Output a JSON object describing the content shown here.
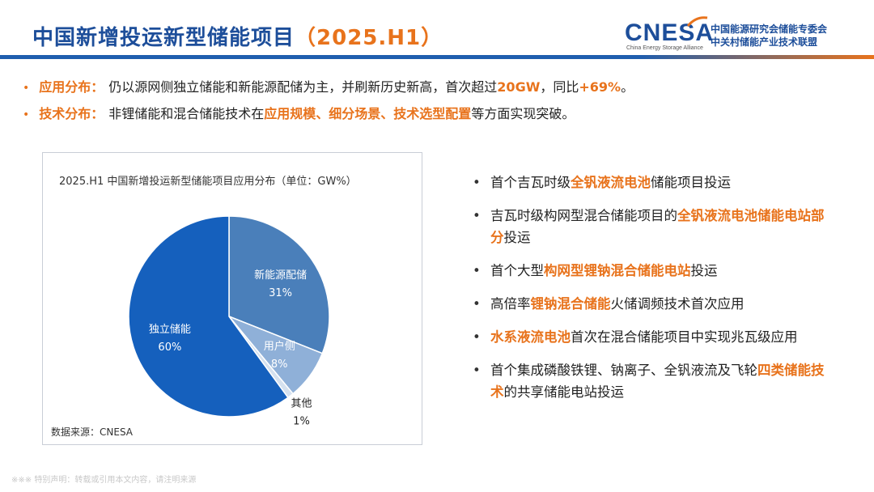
{
  "header": {
    "title_main": "中国新增投运新型储能项目",
    "title_accent": "（2025.H1）",
    "logo_word": "CNESA",
    "logo_sub": "China Energy Storage Alliance",
    "logo_cn_line1": "中国能源研究会储能专委会",
    "logo_cn_line2": "中关村储能产业技术联盟",
    "brand_color": "#1d4e9a",
    "accent_color": "#e8731c"
  },
  "summary": [
    {
      "key": "应用分布：",
      "parts": [
        "仍以源网侧独立储能和新能源配储为主，并刷新历史新高，首次超过",
        "20GW",
        "，同比",
        "+69%",
        "。"
      ]
    },
    {
      "key": "技术分布：",
      "parts": [
        "非锂储能和混合储能技术在",
        "应用规模、细分场景、技术选型配置",
        "等方面实现突破。"
      ]
    }
  ],
  "chart": {
    "title": "2025.H1 中国新增投运新型储能项目应用分布（单位：GW%）",
    "source": "数据来源：CNESA"
  },
  "chart_data": {
    "type": "pie",
    "title": "2025.H1 中国新增投运新型储能项目应用分布（单位：GW%）",
    "unit": "%",
    "categories": [
      "新能源配储",
      "用户侧",
      "其他",
      "独立储能"
    ],
    "values": [
      31,
      8,
      1,
      60
    ],
    "labels": [
      "31%",
      "8%",
      "1%",
      "60%"
    ],
    "colors": [
      "#4a7fba",
      "#8fb0d8",
      "#d5e1ef",
      "#1560bd"
    ]
  },
  "milestones": [
    {
      "parts": [
        "首个吉瓦时级",
        "全钒液流电池",
        "储能项目投运"
      ]
    },
    {
      "parts": [
        "吉瓦时级构网型混合储能项目的",
        "全钒液流电池储能电站部分",
        "投运"
      ]
    },
    {
      "parts": [
        "首个大型",
        "构网型锂钠混合储能电站",
        "投运"
      ]
    },
    {
      "parts": [
        "高倍率",
        "锂钠混合储能",
        "火储调频技术首次应用"
      ]
    },
    {
      "parts": [
        "",
        "水系液流电池",
        "首次在混合储能项目中实现兆瓦级应用"
      ]
    },
    {
      "parts": [
        "首个集成磷酸铁锂、钠离子、全钒液流及飞轮",
        "四类储能技术",
        "的共享储能电站投运"
      ]
    }
  ],
  "footer": {
    "note": "※※※ 特别声明：转载或引用本文内容，请注明来源"
  }
}
